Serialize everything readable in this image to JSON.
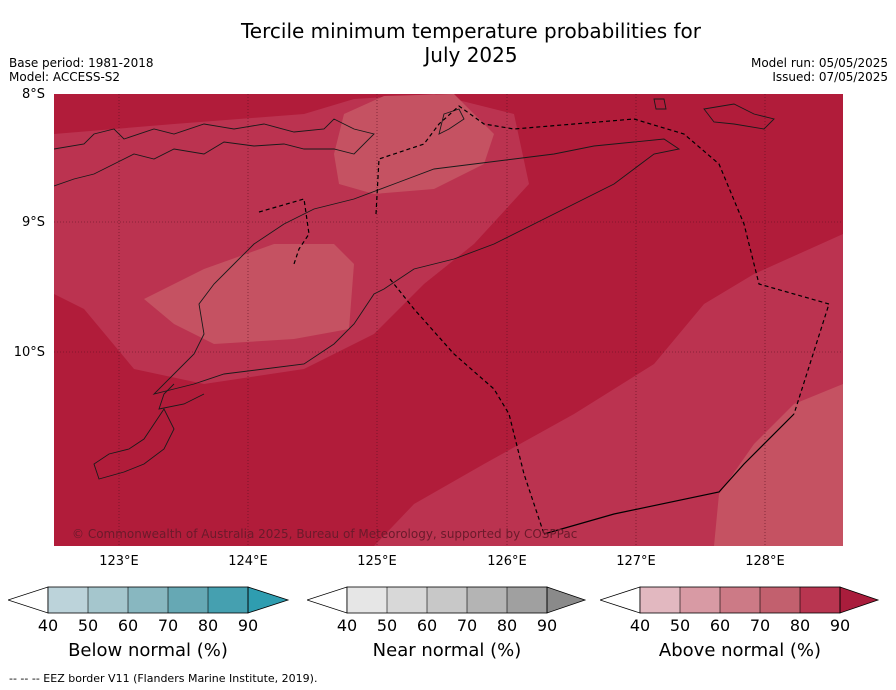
{
  "title_line1": "Tercile minimum temperature probabilities for",
  "title_line2": "July 2025",
  "base_period": "Base period: 1981-2018",
  "model": "Model: ACCESS-S2",
  "model_run": "Model run: 05/05/2025",
  "issued": "Issued: 07/05/2025",
  "latitudes": [
    "8°S",
    "9°S",
    "10°S"
  ],
  "longitudes": [
    "123°E",
    "124°E",
    "125°E",
    "126°E",
    "127°E",
    "128°E"
  ],
  "copyright": "© Commonwealth of Australia 2025, Bureau of Meteorology, supported by COSPPac",
  "colorbars": [
    {
      "label": "Below normal (%)",
      "ticks": [
        "40",
        "50",
        "60",
        "70",
        "80",
        "90"
      ],
      "colors": [
        "#bcd3da",
        "#a5c6cd",
        "#88b7c0",
        "#66a8b4",
        "#45a0b0",
        "#2f9db0"
      ]
    },
    {
      "label": "Near normal (%)",
      "ticks": [
        "40",
        "50",
        "60",
        "70",
        "80",
        "90"
      ],
      "colors": [
        "#e6e6e6",
        "#d8d8d8",
        "#c8c8c8",
        "#b4b4b4",
        "#a0a0a0",
        "#8a8a8a"
      ]
    },
    {
      "label": "Above normal (%)",
      "ticks": [
        "40",
        "50",
        "60",
        "70",
        "80",
        "90"
      ],
      "colors": [
        "#e2b8c0",
        "#d89aa4",
        "#cc7a86",
        "#c2606e",
        "#b83550",
        "#a91d3c"
      ]
    }
  ],
  "footnote": "--  --  -- EEZ border V11 (Flanders Marine Institute, 2019).",
  "colors": {
    "above_90": "#b11c3a",
    "above_80": "#bb3350",
    "above_70": "#c55262"
  }
}
